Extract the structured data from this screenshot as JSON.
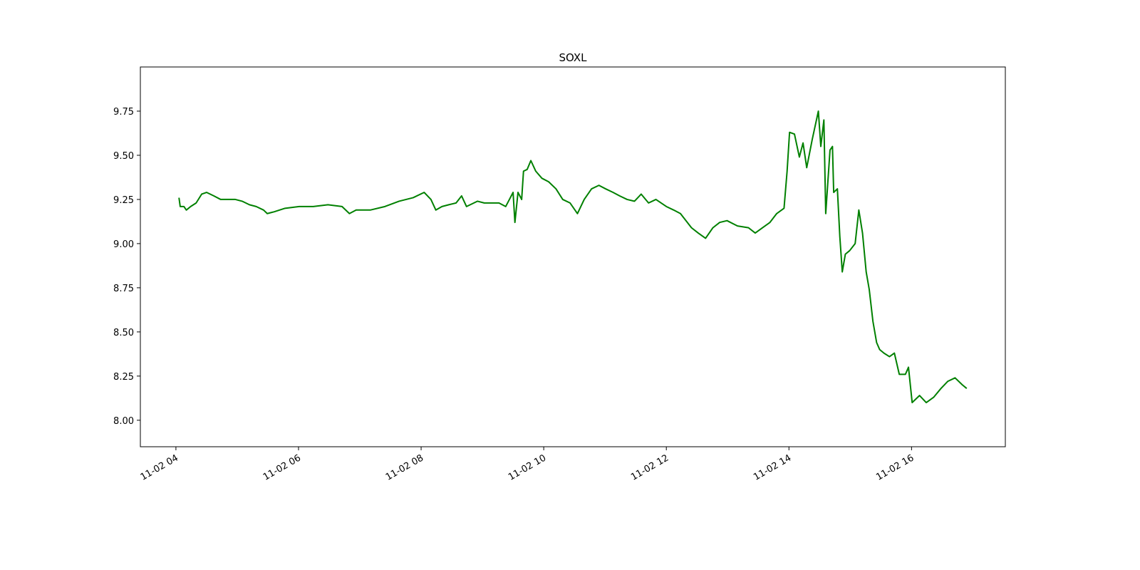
{
  "chart_data": {
    "type": "line",
    "title": "SOXL",
    "x": [
      4.05,
      4.07,
      4.13,
      4.17,
      4.24,
      4.33,
      4.42,
      4.5,
      4.62,
      4.73,
      4.85,
      4.97,
      5.08,
      5.2,
      5.31,
      5.43,
      5.49,
      5.6,
      5.78,
      6.01,
      6.24,
      6.48,
      6.71,
      6.83,
      6.94,
      7.17,
      7.41,
      7.64,
      7.87,
      8.05,
      8.16,
      8.24,
      8.34,
      8.45,
      8.57,
      8.66,
      8.74,
      8.92,
      9.03,
      9.27,
      9.38,
      9.44,
      9.5,
      9.53,
      9.58,
      9.64,
      9.67,
      9.73,
      9.79,
      9.87,
      9.97,
      10.08,
      10.2,
      10.31,
      10.43,
      10.55,
      10.66,
      10.78,
      10.9,
      11.01,
      11.13,
      11.24,
      11.36,
      11.48,
      11.59,
      11.71,
      11.83,
      12.0,
      12.12,
      12.23,
      12.41,
      12.52,
      12.64,
      12.76,
      12.87,
      12.99,
      13.16,
      13.34,
      13.45,
      13.57,
      13.69,
      13.8,
      13.92,
      13.97,
      14.01,
      14.09,
      14.17,
      14.23,
      14.29,
      14.38,
      14.48,
      14.52,
      14.57,
      14.6,
      14.67,
      14.71,
      14.73,
      14.79,
      14.83,
      14.87,
      14.92,
      14.99,
      15.08,
      15.14,
      15.2,
      15.26,
      15.31,
      15.37,
      15.43,
      15.48,
      15.55,
      15.64,
      15.72,
      15.8,
      15.9,
      15.95,
      16.01,
      16.13,
      16.24,
      16.36,
      16.48,
      16.59,
      16.71,
      16.83,
      16.9
    ],
    "series": [
      {
        "name": "SOXL",
        "color": "#008000",
        "values": [
          9.26,
          9.21,
          9.21,
          9.19,
          9.21,
          9.23,
          9.28,
          9.29,
          9.27,
          9.25,
          9.25,
          9.25,
          9.24,
          9.22,
          9.21,
          9.19,
          9.17,
          9.18,
          9.2,
          9.21,
          9.21,
          9.22,
          9.21,
          9.17,
          9.19,
          9.19,
          9.21,
          9.24,
          9.26,
          9.29,
          9.25,
          9.19,
          9.21,
          9.22,
          9.23,
          9.27,
          9.21,
          9.24,
          9.23,
          9.23,
          9.21,
          9.25,
          9.29,
          9.12,
          9.29,
          9.25,
          9.41,
          9.42,
          9.47,
          9.41,
          9.37,
          9.35,
          9.31,
          9.25,
          9.23,
          9.17,
          9.25,
          9.31,
          9.33,
          9.31,
          9.29,
          9.27,
          9.25,
          9.24,
          9.28,
          9.23,
          9.25,
          9.21,
          9.19,
          9.17,
          9.09,
          9.06,
          9.03,
          9.09,
          9.12,
          9.13,
          9.1,
          9.09,
          9.06,
          9.09,
          9.12,
          9.17,
          9.2,
          9.41,
          9.63,
          9.62,
          9.49,
          9.57,
          9.43,
          9.59,
          9.75,
          9.55,
          9.7,
          9.17,
          9.53,
          9.55,
          9.29,
          9.31,
          9.04,
          8.84,
          8.94,
          8.96,
          9.0,
          9.19,
          9.06,
          8.84,
          8.74,
          8.56,
          8.44,
          8.4,
          8.38,
          8.36,
          8.38,
          8.26,
          8.26,
          8.3,
          8.1,
          8.14,
          8.1,
          8.13,
          8.18,
          8.22,
          8.24,
          8.2,
          8.18
        ]
      }
    ],
    "xlim": [
      3.42,
      17.53
    ],
    "xticks": [
      {
        "value": 4,
        "label": "11-02 04"
      },
      {
        "value": 6,
        "label": "11-02 06"
      },
      {
        "value": 8,
        "label": "11-02 08"
      },
      {
        "value": 10,
        "label": "11-02 10"
      },
      {
        "value": 12,
        "label": "11-02 12"
      },
      {
        "value": 14,
        "label": "11-02 14"
      },
      {
        "value": 16,
        "label": "11-02 16"
      }
    ],
    "ylim": [
      7.85,
      10.0
    ],
    "yticks": [
      {
        "value": 8,
        "label": "8.00"
      },
      {
        "value": 8.25,
        "label": "8.25"
      },
      {
        "value": 8.5,
        "label": "8.50"
      },
      {
        "value": 8.75,
        "label": "8.75"
      },
      {
        "value": 9,
        "label": "9.00"
      },
      {
        "value": 9.25,
        "label": "9.25"
      },
      {
        "value": 9.5,
        "label": "9.50"
      },
      {
        "value": 9.75,
        "label": "9.75"
      }
    ],
    "grid": false
  }
}
